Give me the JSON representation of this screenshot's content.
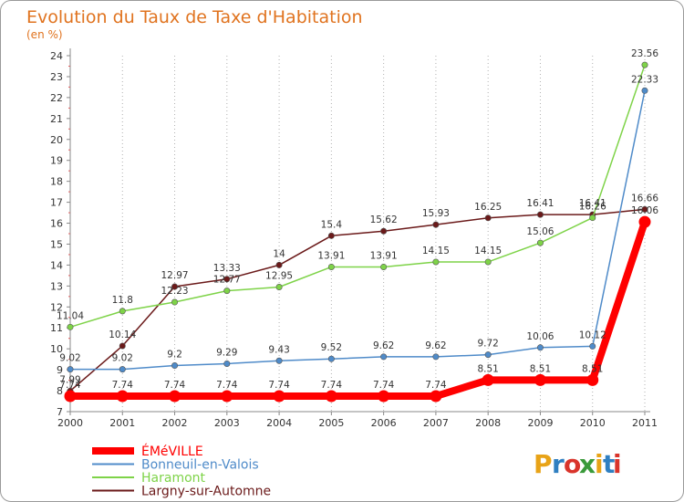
{
  "chart_data": {
    "type": "line",
    "title": "Evolution du Taux de Taxe d'Habitation",
    "subtitle": "(en %)",
    "xlabel": "",
    "ylabel": "",
    "x": [
      "2000",
      "2001",
      "2002",
      "2003",
      "2004",
      "2005",
      "2006",
      "2007",
      "2008",
      "2009",
      "2010",
      "2011"
    ],
    "ylim": [
      7,
      24
    ],
    "yticks": [
      "7",
      "8",
      "9",
      "10",
      "11",
      "12",
      "13",
      "14",
      "15",
      "16",
      "17",
      "18",
      "19",
      "20",
      "21",
      "22",
      "23",
      "24"
    ],
    "grid": "vertical-dotted",
    "legend_position": "bottom-left",
    "series": [
      {
        "name": "ÉMéVILLE",
        "color": "#ff0000",
        "values": [
          7.74,
          7.74,
          7.74,
          7.74,
          7.74,
          7.74,
          7.74,
          7.74,
          8.51,
          8.51,
          8.51,
          16.06
        ],
        "labels": [
          "7.74",
          "7.74",
          "7.74",
          "7.74",
          "7.74",
          "7.74",
          "7.74",
          "7.74",
          "8.51",
          "8.51",
          "8.51",
          "16.06"
        ]
      },
      {
        "name": "Bonneuil-en-Valois",
        "color": "#4f8bc9",
        "values": [
          9.02,
          9.02,
          9.2,
          9.29,
          9.43,
          9.52,
          9.62,
          9.62,
          9.72,
          10.06,
          10.12,
          22.33
        ],
        "labels": [
          "9.02",
          "9.02",
          "9.2",
          "9.29",
          "9.43",
          "9.52",
          "9.62",
          "9.62",
          "9.72",
          "10.06",
          "10.12",
          "22.33"
        ]
      },
      {
        "name": "Haramont",
        "color": "#7ed348",
        "values": [
          11.04,
          11.8,
          12.23,
          12.77,
          12.95,
          13.91,
          13.91,
          14.15,
          14.15,
          15.06,
          16.26,
          23.56
        ],
        "labels": [
          "11.04",
          "11.8",
          "12.23",
          "12.77",
          "12.95",
          "13.91",
          "13.91",
          "14.15",
          "14.15",
          "15.06",
          "16.26",
          "23.56"
        ]
      },
      {
        "name": "Largny-sur-Automne",
        "color": "#6b1a1a",
        "values": [
          7.99,
          10.14,
          12.97,
          13.33,
          14,
          15.4,
          15.62,
          15.93,
          16.25,
          16.41,
          16.41,
          16.66
        ],
        "labels": [
          "7.99",
          "10.14",
          "12.97",
          "13.33",
          "14",
          "15.4",
          "15.62",
          "15.93",
          "16.25",
          "16.41",
          "16.41",
          "16.66"
        ]
      }
    ]
  },
  "logo": {
    "text": "Proxiti",
    "letters": [
      "P",
      "r",
      "o",
      "x",
      "i",
      "t",
      "i"
    ],
    "colors": [
      "#e8a317",
      "#2f7fc1",
      "#d9342b",
      "#3a9a3a",
      "#e8a317",
      "#2f7fc1",
      "#d9342b"
    ]
  }
}
